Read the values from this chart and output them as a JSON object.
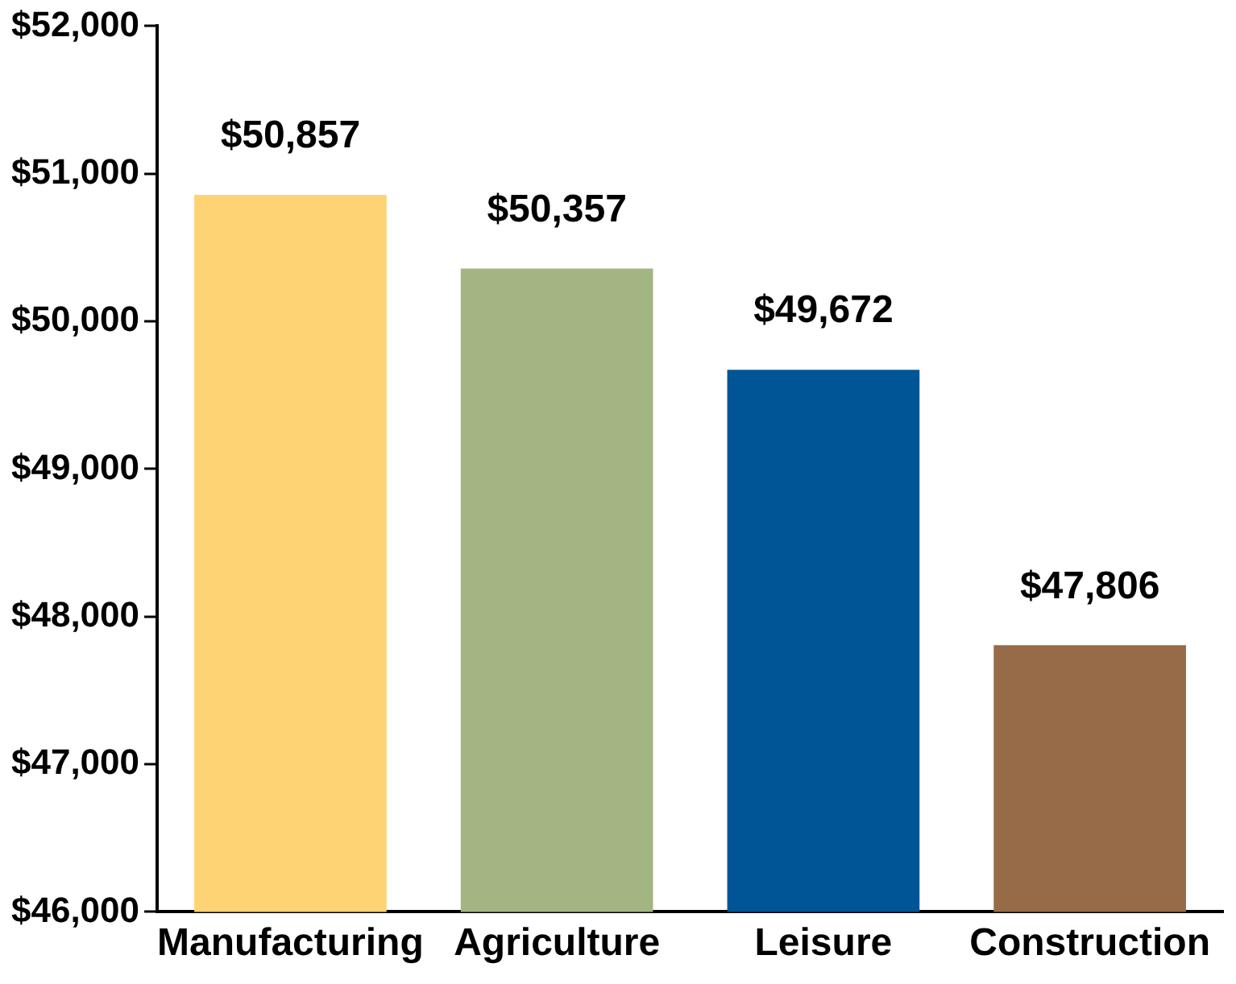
{
  "chart_data": {
    "type": "bar",
    "categories": [
      "Manufacturing",
      "Agriculture",
      "Leisure",
      "Construction"
    ],
    "values": [
      50857,
      50357,
      49672,
      47806
    ],
    "colors": [
      "#fdd373",
      "#a3b583",
      "#005596",
      "#976b47"
    ],
    "value_labels": [
      "$50,857",
      "$50,357",
      "$49,672",
      "$47,806"
    ],
    "ylim": [
      46000,
      52000
    ],
    "yticks": [
      {
        "value": 46000,
        "label": "$46,000"
      },
      {
        "value": 47000,
        "label": "$47,000"
      },
      {
        "value": 48000,
        "label": "$48,000"
      },
      {
        "value": 49000,
        "label": "$49,000"
      },
      {
        "value": 50000,
        "label": "$50,000"
      },
      {
        "value": 51000,
        "label": "$51,000"
      },
      {
        "value": 52000,
        "label": "$52,000"
      }
    ],
    "grid": false,
    "legend": false
  }
}
